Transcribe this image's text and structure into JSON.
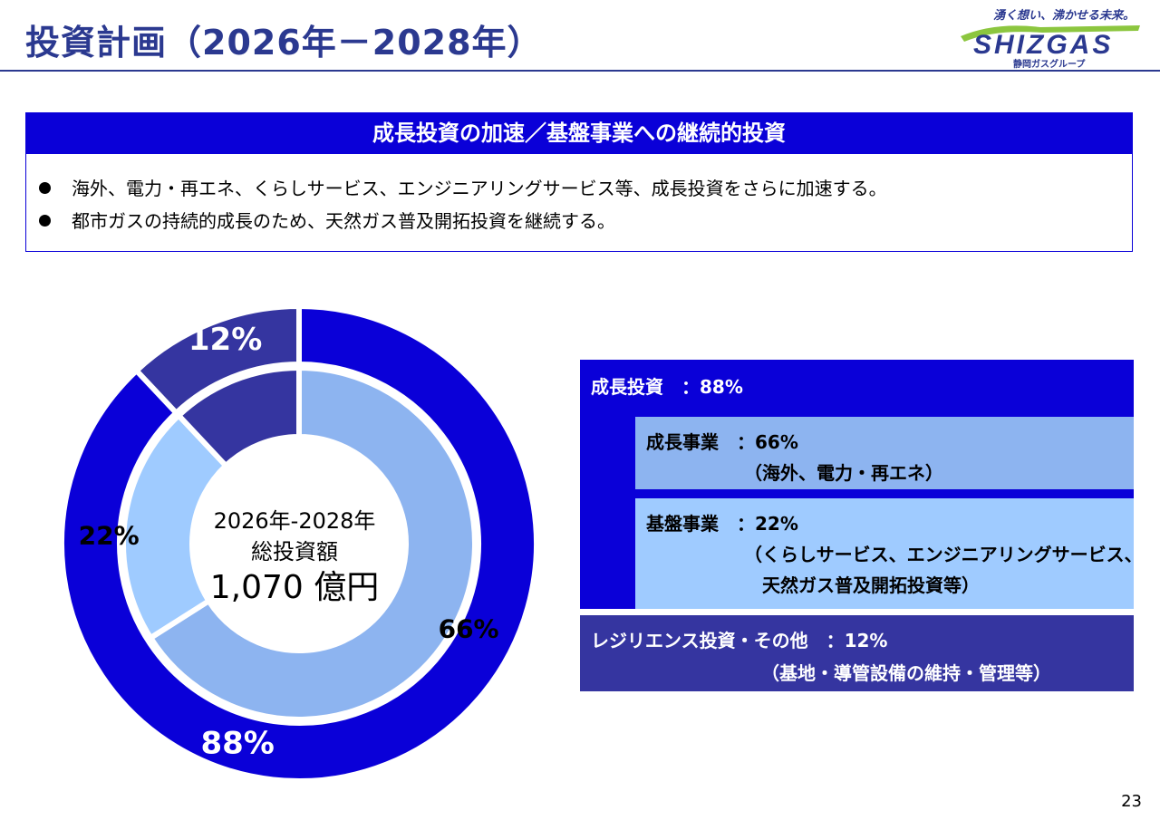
{
  "header": {
    "title": "投資計画（2026年－2028年）"
  },
  "logo": {
    "tagline": "湧く想い、沸かせる未来。",
    "brand": "SHIZGAS",
    "group": "静岡ガスグループ"
  },
  "summary": {
    "heading": "成長投資の加速／基盤事業への継続的投資",
    "bullets": [
      "海外、電力・再エネ、くらしサービス、エンジニアリングサービス等、成長投資をさらに加速する。",
      "都市ガスの持続的成長のため、天然ガス普及開拓投資を継続する。"
    ]
  },
  "chart_data": {
    "type": "pie",
    "title": "",
    "center_label": {
      "line1": "2026年-2028年",
      "line2": "総投資額",
      "line3": "1,070 億円"
    },
    "rings": [
      {
        "name": "outer",
        "slices": [
          {
            "label": "成長投資",
            "value": 88,
            "display": "88%",
            "color": "#0a00d8"
          },
          {
            "label": "レジリエンス投資・その他",
            "value": 12,
            "display": "12%",
            "color": "#3535a0"
          }
        ]
      },
      {
        "name": "inner",
        "slices": [
          {
            "label": "成長事業",
            "value": 66,
            "display": "66%",
            "color": "#8db4f0"
          },
          {
            "label": "基盤事業",
            "value": 22,
            "display": "22%",
            "color": "#9fcbff"
          },
          {
            "label": "レジリエンス投資・その他",
            "value": 12,
            "display": "",
            "color": "#3535a0"
          }
        ]
      }
    ]
  },
  "legend": {
    "growth": {
      "head": "成長投資　：88%",
      "growth_business": {
        "line1": "成長事業　：66%",
        "line2": "（海外、電力・再エネ）"
      },
      "base_business": {
        "line1": "基盤事業　：22%",
        "line2": "（くらしサービス、エンジニアリングサービス、",
        "line3": "天然ガス普及開拓投資等）"
      }
    },
    "resilience": {
      "line1": "レジリエンス投資・その他　：12%",
      "line2": "（基地・導管設備の維持・管理等）"
    }
  },
  "footer": {
    "page": "23"
  }
}
